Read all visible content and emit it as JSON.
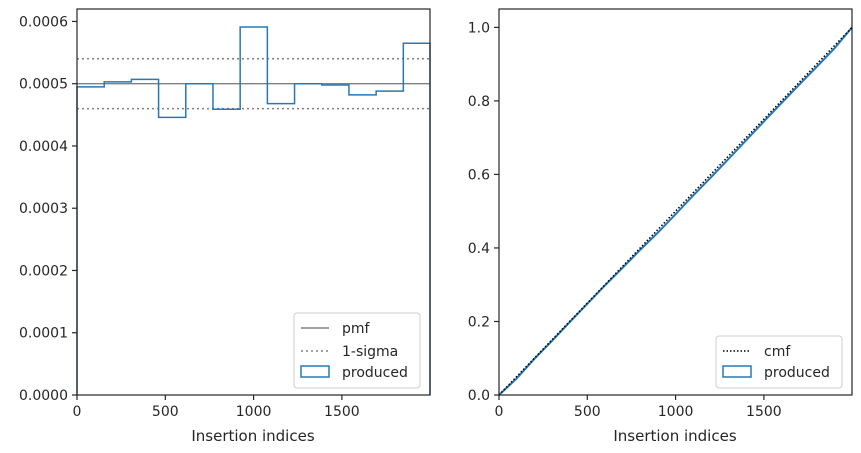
{
  "chart_data": [
    {
      "type": "line",
      "xlabel": "Insertion indices",
      "ylabel": "",
      "xlim": [
        0,
        1999
      ],
      "ylim": [
        0,
        0.00062
      ],
      "x_ticks": [
        0,
        500,
        1000,
        1500
      ],
      "x_tick_labels": [
        "0",
        "500",
        "1000",
        "1500"
      ],
      "y_ticks": [
        0,
        0.0001,
        0.0002,
        0.0003,
        0.0004,
        0.0005,
        0.0006
      ],
      "y_tick_labels": [
        "0.0000",
        "0.0001",
        "0.0002",
        "0.0003",
        "0.0004",
        "0.0005",
        "0.0006"
      ],
      "grid": false,
      "legend_position": "lower-right",
      "pmf": {
        "label": "pmf",
        "value": 0.0005,
        "color": "#808080"
      },
      "sigma": {
        "label": "1-sigma",
        "lower": 0.00046,
        "upper": 0.00054,
        "color": "#808080"
      },
      "produced": {
        "label": "produced",
        "color": "#2878b5",
        "bin_edges": [
          0,
          154,
          308,
          462,
          616,
          770,
          924,
          1078,
          1232,
          1386,
          1540,
          1694,
          1848,
          1999
        ],
        "values": [
          0.000495,
          0.000503,
          0.000507,
          0.000446,
          0.0005,
          0.000459,
          0.000591,
          0.000468,
          0.0005,
          0.000498,
          0.000482,
          0.000488,
          0.000565
        ]
      }
    },
    {
      "type": "line",
      "xlabel": "Insertion indices",
      "ylabel": "",
      "xlim": [
        0,
        1999
      ],
      "ylim": [
        0,
        1.05
      ],
      "x_ticks": [
        0,
        500,
        1000,
        1500
      ],
      "x_tick_labels": [
        "0",
        "500",
        "1000",
        "1500"
      ],
      "y_ticks": [
        0,
        0.2,
        0.4,
        0.6,
        0.8,
        1.0
      ],
      "y_tick_labels": [
        "0.0",
        "0.2",
        "0.4",
        "0.6",
        "0.8",
        "1.0"
      ],
      "grid": false,
      "legend_position": "lower-right",
      "cmf": {
        "label": "cmf",
        "color": "#000000",
        "x": [
          0,
          1999
        ],
        "y": [
          0,
          1.0
        ]
      },
      "produced": {
        "label": "produced",
        "color": "#2878b5",
        "x": [
          0,
          100,
          200,
          300,
          400,
          500,
          600,
          700,
          800,
          900,
          1000,
          1100,
          1200,
          1300,
          1400,
          1500,
          1600,
          1700,
          1800,
          1900,
          1999
        ],
        "y": [
          0,
          0.045,
          0.098,
          0.147,
          0.198,
          0.248,
          0.298,
          0.346,
          0.395,
          0.442,
          0.492,
          0.543,
          0.592,
          0.642,
          0.693,
          0.744,
          0.794,
          0.844,
          0.893,
          0.943,
          1.0
        ]
      }
    }
  ]
}
